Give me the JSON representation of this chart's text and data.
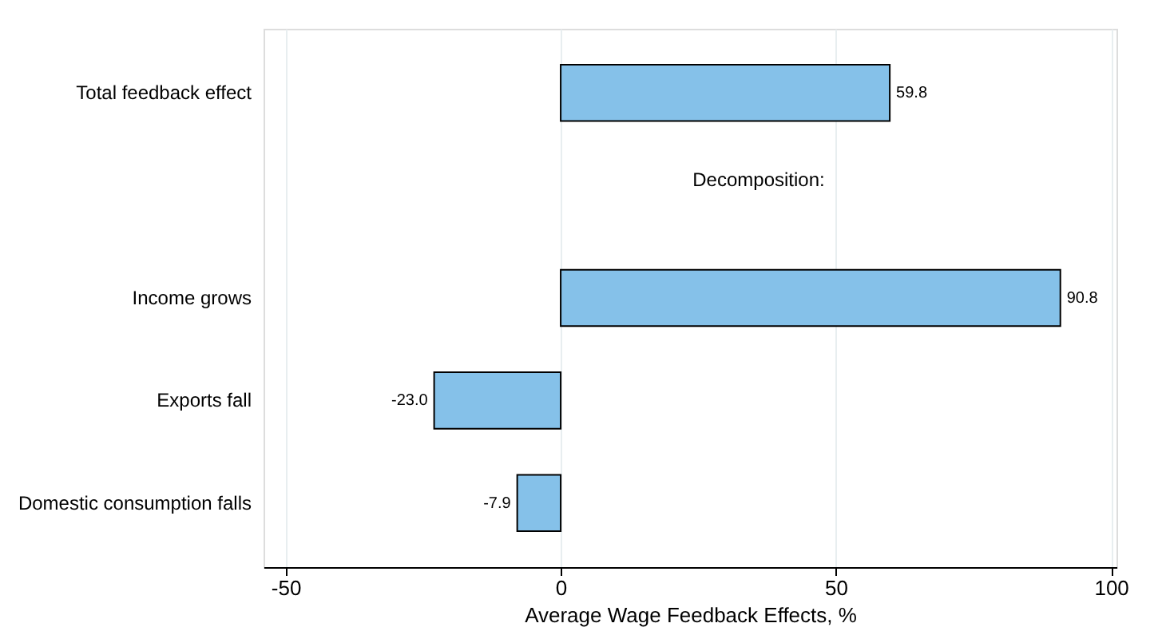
{
  "chart_data": {
    "type": "bar",
    "orientation": "horizontal",
    "xlabel": "Average Wage Feedback Effects, %",
    "categories": [
      "Total feedback effect",
      null,
      "Income grows",
      "Exports fall",
      "Domestic consumption falls"
    ],
    "values": [
      59.8,
      null,
      90.8,
      -23.0,
      -7.9
    ],
    "value_labels": [
      "59.8",
      null,
      "90.8",
      "-23.0",
      "-7.9"
    ],
    "color": "#85c1e9",
    "xlim": [
      -54,
      101
    ],
    "xticks": [
      -50,
      0,
      50,
      100
    ],
    "grid": "x",
    "annotations": [
      "Decomposition:"
    ]
  }
}
